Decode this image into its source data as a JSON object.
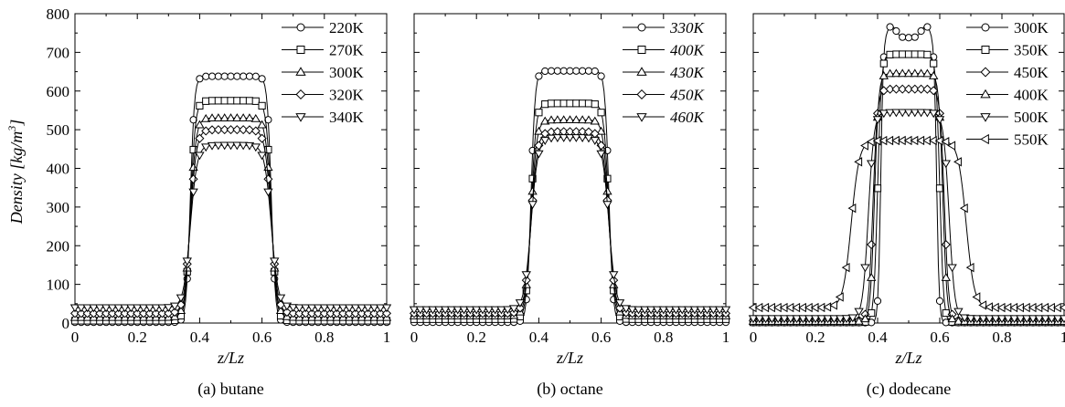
{
  "figure": {
    "ylabel": "Density [kg/m",
    "ylabel_sup": "3",
    "ylabel_close": "]"
  },
  "colors": {
    "ink": "#000000",
    "marker_fill": "#ffffff"
  },
  "chart_data": [
    {
      "type": "line",
      "caption": "(a) butane",
      "xlabel": "z/Lz",
      "ylabel": "Density [kg/m^3]",
      "xlim": [
        0,
        1
      ],
      "ylim": [
        0,
        800
      ],
      "x_ticks": [
        "0",
        "0.2",
        "0.4",
        "0.6",
        "0.8",
        "1"
      ],
      "y_ticks": [
        "0",
        "100",
        "200",
        "300",
        "400",
        "500",
        "600",
        "700",
        "800"
      ],
      "show_y_tick_labels": true,
      "legend_position": "top-right",
      "legend_italic": false,
      "series": [
        {
          "name": "220K",
          "marker": "circle",
          "liquid": 638,
          "vapor": 2,
          "x1": 0.37,
          "x2": 0.63,
          "width": 0.013,
          "peak": 0
        },
        {
          "name": "270K",
          "marker": "square",
          "liquid": 575,
          "vapor": 6,
          "x1": 0.37,
          "x2": 0.63,
          "width": 0.016,
          "peak": 0
        },
        {
          "name": "300K",
          "marker": "triangle-up",
          "liquid": 530,
          "vapor": 14,
          "x1": 0.37,
          "x2": 0.63,
          "width": 0.018,
          "peak": 0
        },
        {
          "name": "320K",
          "marker": "diamond",
          "liquid": 500,
          "vapor": 25,
          "x1": 0.37,
          "x2": 0.63,
          "width": 0.02,
          "peak": 0
        },
        {
          "name": "340K",
          "marker": "triangle-down",
          "liquid": 460,
          "vapor": 40,
          "x1": 0.37,
          "x2": 0.63,
          "width": 0.022,
          "peak": 0
        }
      ]
    },
    {
      "type": "line",
      "caption": "(b) octane",
      "xlabel": "z/Lz",
      "ylabel": "",
      "xlim": [
        0,
        1
      ],
      "ylim": [
        0,
        800
      ],
      "x_ticks": [
        "0",
        "0.2",
        "0.4",
        "0.6",
        "0.8",
        "1"
      ],
      "y_ticks": [
        "0",
        "100",
        "200",
        "300",
        "400",
        "500",
        "600",
        "700",
        "800"
      ],
      "show_y_tick_labels": false,
      "legend_position": "top-right",
      "legend_italic": true,
      "series": [
        {
          "name": "330K",
          "marker": "circle",
          "liquid": 652,
          "vapor": 2,
          "x1": 0.375,
          "x2": 0.625,
          "width": 0.013,
          "peak": 0
        },
        {
          "name": "400K",
          "marker": "square",
          "liquid": 568,
          "vapor": 10,
          "x1": 0.375,
          "x2": 0.625,
          "width": 0.016,
          "peak": 0
        },
        {
          "name": "430K",
          "marker": "triangle-up",
          "liquid": 525,
          "vapor": 18,
          "x1": 0.375,
          "x2": 0.625,
          "width": 0.018,
          "peak": 0
        },
        {
          "name": "450K",
          "marker": "diamond",
          "liquid": 495,
          "vapor": 25,
          "x1": 0.375,
          "x2": 0.625,
          "width": 0.02,
          "peak": 0
        },
        {
          "name": "460K",
          "marker": "triangle-down",
          "liquid": 480,
          "vapor": 35,
          "x1": 0.375,
          "x2": 0.625,
          "width": 0.022,
          "peak": 0
        }
      ]
    },
    {
      "type": "line",
      "caption": "(c) dodecane",
      "xlabel": "z/Lz",
      "ylabel": "",
      "xlim": [
        0,
        1
      ],
      "ylim": [
        0,
        800
      ],
      "x_ticks": [
        "0",
        "0.2",
        "0.4",
        "0.6",
        "0.8",
        "1"
      ],
      "y_ticks": [
        "0",
        "100",
        "200",
        "300",
        "400",
        "500",
        "600",
        "700",
        "800"
      ],
      "show_y_tick_labels": false,
      "legend_position": "top-right",
      "legend_italic": false,
      "series": [
        {
          "name": "300K",
          "marker": "circle",
          "liquid": 738,
          "vapor": 1,
          "x1": 0.41,
          "x2": 0.59,
          "width": 0.008,
          "peak": 30
        },
        {
          "name": "350K",
          "marker": "square",
          "liquid": 695,
          "vapor": 2,
          "x1": 0.4,
          "x2": 0.6,
          "width": 0.012,
          "peak": 0
        },
        {
          "name": "450K",
          "marker": "diamond",
          "liquid": 605,
          "vapor": 6,
          "x1": 0.385,
          "x2": 0.615,
          "width": 0.014,
          "peak": 0
        },
        {
          "name": "400K",
          "marker": "triangle-up",
          "liquid": 645,
          "vapor": 4,
          "x1": 0.39,
          "x2": 0.61,
          "width": 0.013,
          "peak": 0
        },
        {
          "name": "500K",
          "marker": "triangle-down",
          "liquid": 545,
          "vapor": 12,
          "x1": 0.37,
          "x2": 0.63,
          "width": 0.018,
          "peak": 0
        },
        {
          "name": "550K",
          "marker": "triangle-left",
          "liquid": 472,
          "vapor": 40,
          "x1": 0.315,
          "x2": 0.685,
          "width": 0.026,
          "peak": 0
        }
      ]
    }
  ]
}
